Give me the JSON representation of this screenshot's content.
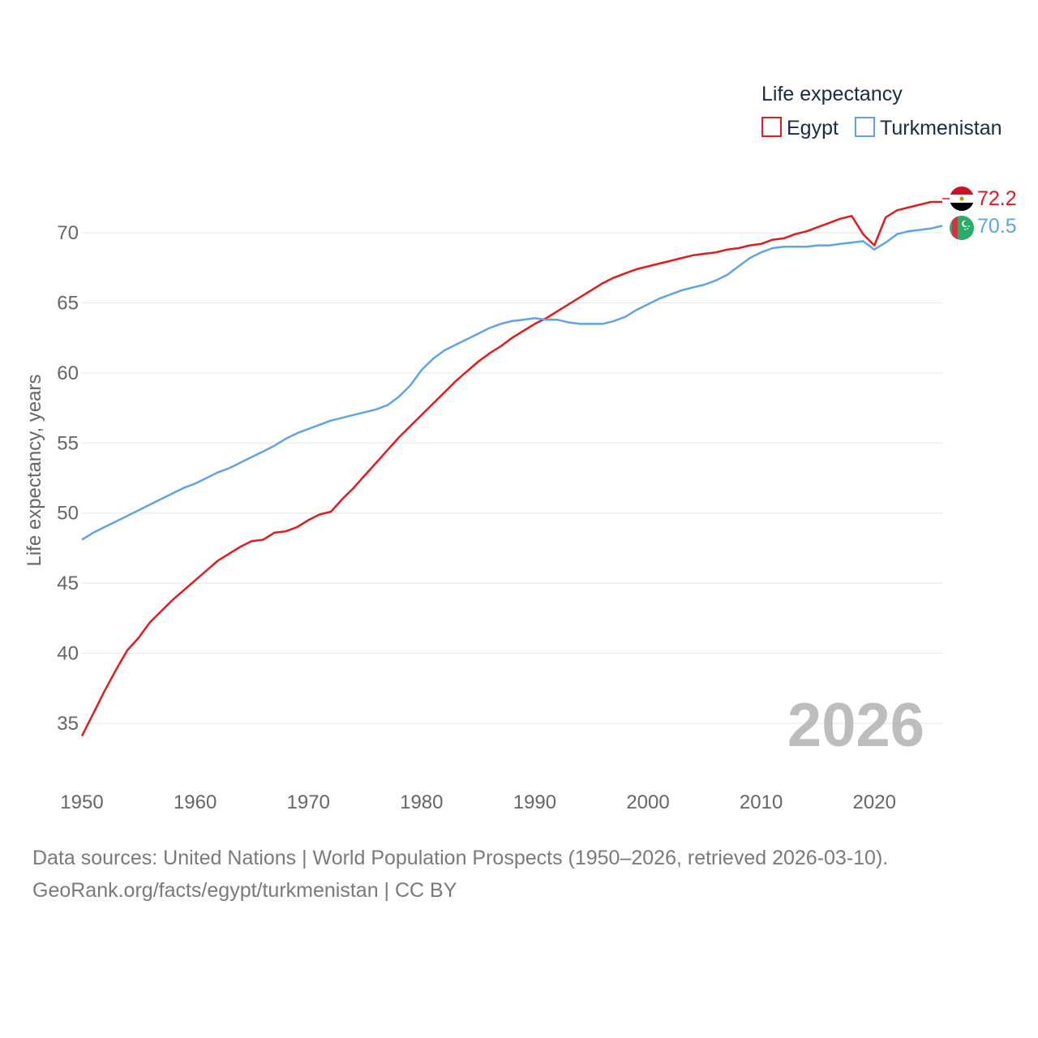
{
  "chart_data": {
    "type": "line",
    "title": "",
    "xlabel": "",
    "ylabel": "Life expectancy, years",
    "xlim": [
      1950,
      2026
    ],
    "ylim": [
      32.5,
      73.5
    ],
    "x_ticks": [
      "1950",
      "1960",
      "1970",
      "1980",
      "1990",
      "2000",
      "2010",
      "2020"
    ],
    "y_ticks": [
      "35",
      "40",
      "45",
      "50",
      "55",
      "60",
      "65",
      "70"
    ],
    "legend": {
      "title": "Life expectancy",
      "position": "top-right"
    },
    "year_watermark": "2026",
    "x": [
      1950,
      1951,
      1952,
      1953,
      1954,
      1955,
      1956,
      1957,
      1958,
      1959,
      1960,
      1961,
      1962,
      1963,
      1964,
      1965,
      1966,
      1967,
      1968,
      1969,
      1970,
      1971,
      1972,
      1973,
      1974,
      1975,
      1976,
      1977,
      1978,
      1979,
      1980,
      1981,
      1982,
      1983,
      1984,
      1985,
      1986,
      1987,
      1988,
      1989,
      1990,
      1991,
      1992,
      1993,
      1994,
      1995,
      1996,
      1997,
      1998,
      1999,
      2000,
      2001,
      2002,
      2003,
      2004,
      2005,
      2006,
      2007,
      2008,
      2009,
      2010,
      2011,
      2012,
      2013,
      2014,
      2015,
      2016,
      2017,
      2018,
      2019,
      2020,
      2021,
      2022,
      2023,
      2024,
      2025,
      2026
    ],
    "series": [
      {
        "name": "Egypt",
        "color": "#e41a1c",
        "end_label": "72.2",
        "flag": "egypt-flag-icon",
        "values": [
          34.1,
          35.7,
          37.3,
          38.8,
          40.2,
          41.1,
          42.2,
          43.0,
          43.8,
          44.5,
          45.2,
          45.9,
          46.6,
          47.1,
          47.6,
          48.0,
          48.1,
          48.6,
          48.7,
          49.0,
          49.5,
          49.9,
          50.1,
          51.0,
          51.8,
          52.7,
          53.6,
          54.5,
          55.4,
          56.2,
          57.0,
          57.8,
          58.6,
          59.4,
          60.1,
          60.8,
          61.4,
          61.9,
          62.5,
          63.0,
          63.5,
          63.9,
          64.4,
          64.9,
          65.4,
          65.9,
          66.4,
          66.8,
          67.1,
          67.4,
          67.6,
          67.8,
          68.0,
          68.2,
          68.4,
          68.5,
          68.6,
          68.8,
          68.9,
          69.1,
          69.2,
          69.5,
          69.6,
          69.9,
          70.1,
          70.4,
          70.7,
          71.0,
          71.2,
          69.9,
          69.1,
          71.1,
          71.6,
          71.8,
          72.0,
          72.2,
          72.2
        ]
      },
      {
        "name": "Turkmenistan",
        "color": "#5da5e6",
        "end_label": "70.5",
        "flag": "turkmenistan-flag-icon",
        "values": [
          48.1,
          48.6,
          49.0,
          49.4,
          49.8,
          50.2,
          50.6,
          51.0,
          51.4,
          51.8,
          52.1,
          52.5,
          52.9,
          53.2,
          53.6,
          54.0,
          54.4,
          54.8,
          55.3,
          55.7,
          56.0,
          56.3,
          56.6,
          56.8,
          57.0,
          57.2,
          57.4,
          57.7,
          58.3,
          59.1,
          60.2,
          61.0,
          61.6,
          62.0,
          62.4,
          62.8,
          63.2,
          63.5,
          63.7,
          63.8,
          63.9,
          63.8,
          63.8,
          63.6,
          63.5,
          63.5,
          63.5,
          63.7,
          64.0,
          64.5,
          64.9,
          65.3,
          65.6,
          65.9,
          66.1,
          66.3,
          66.6,
          67.0,
          67.6,
          68.2,
          68.6,
          68.9,
          69.0,
          69.0,
          69.0,
          69.1,
          69.1,
          69.2,
          69.3,
          69.4,
          68.8,
          69.3,
          69.9,
          70.1,
          70.2,
          70.3,
          70.5
        ]
      }
    ]
  },
  "footer": {
    "line1": "Data sources: United Nations | World Population Prospects (1950–2026, retrieved 2026-03-10).",
    "line2": "GeoRank.org/facts/egypt/turkmenistan | CC BY"
  }
}
